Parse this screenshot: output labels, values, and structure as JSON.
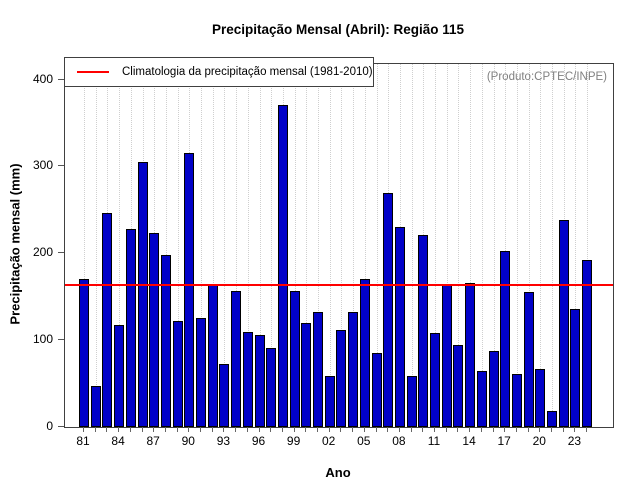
{
  "title": "Precipitação Mensal (Abril): Região 115",
  "legend": {
    "label": "Climatologia da precipitação mensal (1981-2010)"
  },
  "watermark": "(Produto:CPTEC/INPE)",
  "colors": {
    "bar_fill": "#0101c8",
    "bar_border": "#000000",
    "climatology_line": "#ff0000",
    "grid": "#cfcfcf",
    "axis": "#404040",
    "watermark_text": "#808080"
  },
  "chart_data": {
    "type": "bar",
    "title": "Precipitação Mensal (Abril): Região 115",
    "xlabel": "Ano",
    "ylabel": "Precipitação mensal (mm)",
    "ylim": [
      0,
      418
    ],
    "yticks": [
      "0",
      "100",
      "200",
      "300",
      "400"
    ],
    "grid": "vertical-dotted",
    "legend_position": "top-left",
    "x_tick_labels": [
      "81",
      "84",
      "87",
      "90",
      "93",
      "96",
      "99",
      "02",
      "05",
      "08",
      "11",
      "14",
      "17",
      "20",
      "23"
    ],
    "x_label_every": 3,
    "years": [
      1981,
      1982,
      1983,
      1984,
      1985,
      1986,
      1987,
      1988,
      1989,
      1990,
      1991,
      1992,
      1993,
      1994,
      1995,
      1996,
      1997,
      1998,
      1999,
      2000,
      2001,
      2002,
      2003,
      2004,
      2005,
      2006,
      2007,
      2008,
      2009,
      2010,
      2011,
      2012,
      2013,
      2014,
      2015,
      2016,
      2017,
      2018,
      2019,
      2020,
      2021,
      2022,
      2023,
      2024
    ],
    "values": [
      170,
      47,
      246,
      117,
      228,
      305,
      223,
      198,
      122,
      316,
      126,
      163,
      73,
      157,
      109,
      106,
      91,
      371,
      157,
      120,
      132,
      59,
      112,
      132,
      170,
      85,
      270,
      230,
      59,
      221,
      108,
      163,
      94,
      166,
      65,
      88,
      203,
      61,
      155,
      67,
      18,
      238,
      136,
      192
    ],
    "climatology_value": 164,
    "climatology_label": "Climatologia da precipitação mensal (1981-2010)"
  }
}
